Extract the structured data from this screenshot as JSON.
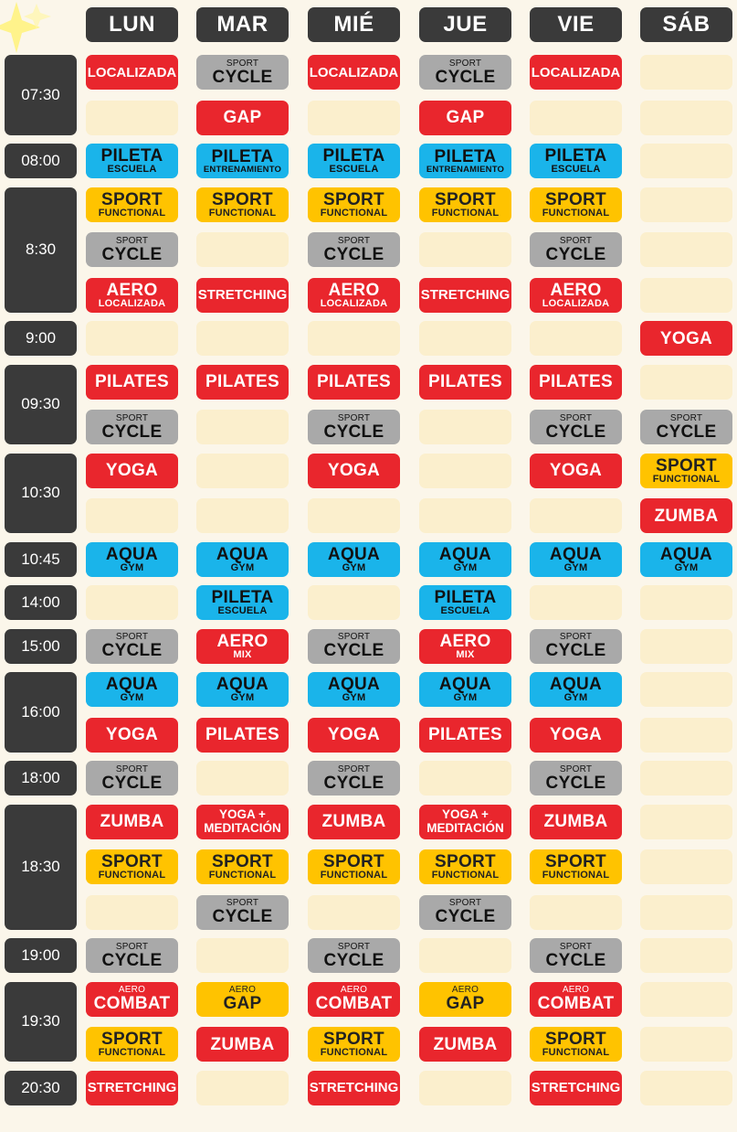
{
  "days": [
    "LUN",
    "MAR",
    "MIÉ",
    "JUE",
    "VIE",
    "SÁB"
  ],
  "time_blocks": [
    {
      "time": "07:30",
      "rows": [
        [
          {
            "type": "text",
            "label": "LOCALIZADA",
            "color": "red"
          },
          {
            "type": "pre",
            "pre": "SPORT",
            "main": "CYCLE",
            "color": "gray"
          },
          {
            "type": "text",
            "label": "LOCALIZADA",
            "color": "red"
          },
          {
            "type": "pre",
            "pre": "SPORT",
            "main": "CYCLE",
            "color": "gray"
          },
          {
            "type": "text",
            "label": "LOCALIZADA",
            "color": "red"
          },
          {
            "type": "empty"
          }
        ],
        [
          {
            "type": "empty"
          },
          {
            "type": "big",
            "label": "GAP",
            "color": "red"
          },
          {
            "type": "empty"
          },
          {
            "type": "big",
            "label": "GAP",
            "color": "red"
          },
          {
            "type": "empty"
          },
          {
            "type": "empty"
          }
        ]
      ]
    },
    {
      "time": "08:00",
      "rows": [
        [
          {
            "type": "main-sub",
            "main": "PILETA",
            "sub": "ESCUELA",
            "color": "blue"
          },
          {
            "type": "main-sub",
            "main": "PILETA",
            "sub": "ENTRENAMIENTO",
            "color": "blue"
          },
          {
            "type": "main-sub",
            "main": "PILETA",
            "sub": "ESCUELA",
            "color": "blue"
          },
          {
            "type": "main-sub",
            "main": "PILETA",
            "sub": "ENTRENAMIENTO",
            "color": "blue"
          },
          {
            "type": "main-sub",
            "main": "PILETA",
            "sub": "ESCUELA",
            "color": "blue"
          },
          {
            "type": "empty"
          }
        ]
      ]
    },
    {
      "time": "8:30",
      "rows": [
        [
          {
            "type": "main-sub",
            "main": "SPORT",
            "sub": "FUNCTIONAL",
            "color": "yellow"
          },
          {
            "type": "main-sub",
            "main": "SPORT",
            "sub": "FUNCTIONAL",
            "color": "yellow"
          },
          {
            "type": "main-sub",
            "main": "SPORT",
            "sub": "FUNCTIONAL",
            "color": "yellow"
          },
          {
            "type": "main-sub",
            "main": "SPORT",
            "sub": "FUNCTIONAL",
            "color": "yellow"
          },
          {
            "type": "main-sub",
            "main": "SPORT",
            "sub": "FUNCTIONAL",
            "color": "yellow"
          },
          {
            "type": "empty"
          }
        ],
        [
          {
            "type": "pre",
            "pre": "SPORT",
            "main": "CYCLE",
            "color": "gray"
          },
          {
            "type": "empty"
          },
          {
            "type": "pre",
            "pre": "SPORT",
            "main": "CYCLE",
            "color": "gray"
          },
          {
            "type": "empty"
          },
          {
            "type": "pre",
            "pre": "SPORT",
            "main": "CYCLE",
            "color": "gray"
          },
          {
            "type": "empty"
          }
        ],
        [
          {
            "type": "main-sub",
            "main": "AERO",
            "sub": "LOCALIZADA",
            "color": "red"
          },
          {
            "type": "text",
            "label": "STRETCHING",
            "color": "red"
          },
          {
            "type": "main-sub",
            "main": "AERO",
            "sub": "LOCALIZADA",
            "color": "red"
          },
          {
            "type": "text",
            "label": "STRETCHING",
            "color": "red"
          },
          {
            "type": "main-sub",
            "main": "AERO",
            "sub": "LOCALIZADA",
            "color": "red"
          },
          {
            "type": "empty"
          }
        ]
      ]
    },
    {
      "time": "9:00",
      "rows": [
        [
          {
            "type": "empty"
          },
          {
            "type": "empty"
          },
          {
            "type": "empty"
          },
          {
            "type": "empty"
          },
          {
            "type": "empty"
          },
          {
            "type": "big",
            "label": "YOGA",
            "color": "red"
          }
        ]
      ]
    },
    {
      "time": "09:30",
      "rows": [
        [
          {
            "type": "big",
            "label": "PILATES",
            "color": "red"
          },
          {
            "type": "big",
            "label": "PILATES",
            "color": "red"
          },
          {
            "type": "big",
            "label": "PILATES",
            "color": "red"
          },
          {
            "type": "big",
            "label": "PILATES",
            "color": "red"
          },
          {
            "type": "big",
            "label": "PILATES",
            "color": "red"
          },
          {
            "type": "empty"
          }
        ],
        [
          {
            "type": "pre",
            "pre": "SPORT",
            "main": "CYCLE",
            "color": "gray"
          },
          {
            "type": "empty"
          },
          {
            "type": "pre",
            "pre": "SPORT",
            "main": "CYCLE",
            "color": "gray"
          },
          {
            "type": "empty"
          },
          {
            "type": "pre",
            "pre": "SPORT",
            "main": "CYCLE",
            "color": "gray"
          },
          {
            "type": "pre",
            "pre": "SPORT",
            "main": "CYCLE",
            "color": "gray"
          }
        ]
      ]
    },
    {
      "time": "10:30",
      "rows": [
        [
          {
            "type": "big",
            "label": "YOGA",
            "color": "red"
          },
          {
            "type": "empty"
          },
          {
            "type": "big",
            "label": "YOGA",
            "color": "red"
          },
          {
            "type": "empty"
          },
          {
            "type": "big",
            "label": "YOGA",
            "color": "red"
          },
          {
            "type": "main-sub",
            "main": "SPORT",
            "sub": "FUNCTIONAL",
            "color": "yellow"
          }
        ],
        [
          {
            "type": "empty"
          },
          {
            "type": "empty"
          },
          {
            "type": "empty"
          },
          {
            "type": "empty"
          },
          {
            "type": "empty"
          },
          {
            "type": "big",
            "label": "ZUMBA",
            "color": "red"
          }
        ]
      ]
    },
    {
      "time": "10:45",
      "rows": [
        [
          {
            "type": "main-sub",
            "main": "AQUA",
            "sub": "GYM",
            "color": "blue"
          },
          {
            "type": "main-sub",
            "main": "AQUA",
            "sub": "GYM",
            "color": "blue"
          },
          {
            "type": "main-sub",
            "main": "AQUA",
            "sub": "GYM",
            "color": "blue"
          },
          {
            "type": "main-sub",
            "main": "AQUA",
            "sub": "GYM",
            "color": "blue"
          },
          {
            "type": "main-sub",
            "main": "AQUA",
            "sub": "GYM",
            "color": "blue"
          },
          {
            "type": "main-sub",
            "main": "AQUA",
            "sub": "GYM",
            "color": "blue"
          }
        ]
      ]
    },
    {
      "time": "14:00",
      "rows": [
        [
          {
            "type": "empty"
          },
          {
            "type": "main-sub",
            "main": "PILETA",
            "sub": "ESCUELA",
            "color": "blue"
          },
          {
            "type": "empty"
          },
          {
            "type": "main-sub",
            "main": "PILETA",
            "sub": "ESCUELA",
            "color": "blue"
          },
          {
            "type": "empty"
          },
          {
            "type": "empty"
          }
        ]
      ]
    },
    {
      "time": "15:00",
      "rows": [
        [
          {
            "type": "pre",
            "pre": "SPORT",
            "main": "CYCLE",
            "color": "gray"
          },
          {
            "type": "main-sub",
            "main": "AERO",
            "sub": "MIX",
            "color": "red"
          },
          {
            "type": "pre",
            "pre": "SPORT",
            "main": "CYCLE",
            "color": "gray"
          },
          {
            "type": "main-sub",
            "main": "AERO",
            "sub": "MIX",
            "color": "red"
          },
          {
            "type": "pre",
            "pre": "SPORT",
            "main": "CYCLE",
            "color": "gray"
          },
          {
            "type": "empty"
          }
        ]
      ]
    },
    {
      "time": "16:00",
      "rows": [
        [
          {
            "type": "main-sub",
            "main": "AQUA",
            "sub": "GYM",
            "color": "blue"
          },
          {
            "type": "main-sub",
            "main": "AQUA",
            "sub": "GYM",
            "color": "blue"
          },
          {
            "type": "main-sub",
            "main": "AQUA",
            "sub": "GYM",
            "color": "blue"
          },
          {
            "type": "main-sub",
            "main": "AQUA",
            "sub": "GYM",
            "color": "blue"
          },
          {
            "type": "main-sub",
            "main": "AQUA",
            "sub": "GYM",
            "color": "blue"
          },
          {
            "type": "empty"
          }
        ],
        [
          {
            "type": "big",
            "label": "YOGA",
            "color": "red"
          },
          {
            "type": "big",
            "label": "PILATES",
            "color": "red"
          },
          {
            "type": "big",
            "label": "YOGA",
            "color": "red"
          },
          {
            "type": "big",
            "label": "PILATES",
            "color": "red"
          },
          {
            "type": "big",
            "label": "YOGA",
            "color": "red"
          },
          {
            "type": "empty"
          }
        ]
      ]
    },
    {
      "time": "18:00",
      "rows": [
        [
          {
            "type": "pre",
            "pre": "SPORT",
            "main": "CYCLE",
            "color": "gray"
          },
          {
            "type": "empty"
          },
          {
            "type": "pre",
            "pre": "SPORT",
            "main": "CYCLE",
            "color": "gray"
          },
          {
            "type": "empty"
          },
          {
            "type": "pre",
            "pre": "SPORT",
            "main": "CYCLE",
            "color": "gray"
          },
          {
            "type": "empty"
          }
        ]
      ]
    },
    {
      "time": "18:30",
      "rows": [
        [
          {
            "type": "big",
            "label": "ZUMBA",
            "color": "red"
          },
          {
            "type": "two",
            "line1": "YOGA +",
            "line2": "MEDITACIÓN",
            "color": "red"
          },
          {
            "type": "big",
            "label": "ZUMBA",
            "color": "red"
          },
          {
            "type": "two",
            "line1": "YOGA +",
            "line2": "MEDITACIÓN",
            "color": "red"
          },
          {
            "type": "big",
            "label": "ZUMBA",
            "color": "red"
          },
          {
            "type": "empty"
          }
        ],
        [
          {
            "type": "main-sub",
            "main": "SPORT",
            "sub": "FUNCTIONAL",
            "color": "yellow"
          },
          {
            "type": "main-sub",
            "main": "SPORT",
            "sub": "FUNCTIONAL",
            "color": "yellow"
          },
          {
            "type": "main-sub",
            "main": "SPORT",
            "sub": "FUNCTIONAL",
            "color": "yellow"
          },
          {
            "type": "main-sub",
            "main": "SPORT",
            "sub": "FUNCTIONAL",
            "color": "yellow"
          },
          {
            "type": "main-sub",
            "main": "SPORT",
            "sub": "FUNCTIONAL",
            "color": "yellow"
          },
          {
            "type": "empty"
          }
        ],
        [
          {
            "type": "empty"
          },
          {
            "type": "pre",
            "pre": "SPORT",
            "main": "CYCLE",
            "color": "gray"
          },
          {
            "type": "empty"
          },
          {
            "type": "pre",
            "pre": "SPORT",
            "main": "CYCLE",
            "color": "gray"
          },
          {
            "type": "empty"
          },
          {
            "type": "empty"
          }
        ]
      ]
    },
    {
      "time": "19:00",
      "rows": [
        [
          {
            "type": "pre",
            "pre": "SPORT",
            "main": "CYCLE",
            "color": "gray"
          },
          {
            "type": "empty"
          },
          {
            "type": "pre",
            "pre": "SPORT",
            "main": "CYCLE",
            "color": "gray"
          },
          {
            "type": "empty"
          },
          {
            "type": "pre",
            "pre": "SPORT",
            "main": "CYCLE",
            "color": "gray"
          },
          {
            "type": "empty"
          }
        ]
      ]
    },
    {
      "time": "19:30",
      "rows": [
        [
          {
            "type": "pre",
            "pre": "AERO",
            "main": "COMBAT",
            "color": "red"
          },
          {
            "type": "pre",
            "pre": "AERO",
            "main": "GAP",
            "color": "yellow"
          },
          {
            "type": "pre",
            "pre": "AERO",
            "main": "COMBAT",
            "color": "red"
          },
          {
            "type": "pre",
            "pre": "AERO",
            "main": "GAP",
            "color": "yellow"
          },
          {
            "type": "pre",
            "pre": "AERO",
            "main": "COMBAT",
            "color": "red"
          },
          {
            "type": "empty"
          }
        ],
        [
          {
            "type": "main-sub",
            "main": "SPORT",
            "sub": "FUNCTIONAL",
            "color": "yellow"
          },
          {
            "type": "big",
            "label": "ZUMBA",
            "color": "red"
          },
          {
            "type": "main-sub",
            "main": "SPORT",
            "sub": "FUNCTIONAL",
            "color": "yellow"
          },
          {
            "type": "big",
            "label": "ZUMBA",
            "color": "red"
          },
          {
            "type": "main-sub",
            "main": "SPORT",
            "sub": "FUNCTIONAL",
            "color": "yellow"
          },
          {
            "type": "empty"
          }
        ]
      ]
    },
    {
      "time": "20:30",
      "rows": [
        [
          {
            "type": "text",
            "label": "STRETCHING",
            "color": "red"
          },
          {
            "type": "empty"
          },
          {
            "type": "text",
            "label": "STRETCHING",
            "color": "red"
          },
          {
            "type": "empty"
          },
          {
            "type": "text",
            "label": "STRETCHING",
            "color": "red"
          },
          {
            "type": "empty"
          }
        ]
      ]
    }
  ]
}
